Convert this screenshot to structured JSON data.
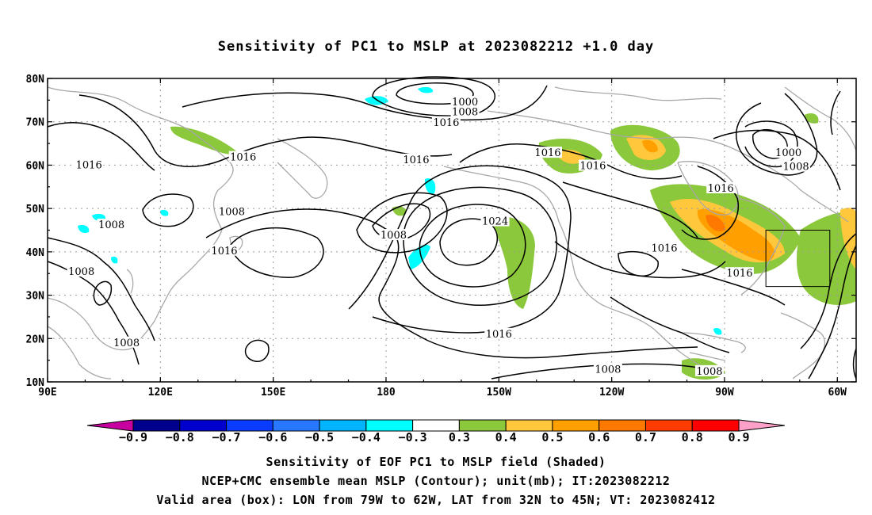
{
  "title": "Sensitivity of PC1 to MSLP at 2023082212 +1.0 day",
  "lat_labels": [
    "80N",
    "70N",
    "60N",
    "50N",
    "40N",
    "30N",
    "20N",
    "10N"
  ],
  "lon_labels": [
    "90E",
    "120E",
    "150E",
    "180",
    "150W",
    "120W",
    "90W",
    "60W"
  ],
  "contour_labels": [
    {
      "text": "1000",
      "lon": -159,
      "lat": 74.5
    },
    {
      "text": "1008",
      "lon": -159,
      "lat": 72.2
    },
    {
      "text": "1016",
      "lon": -164,
      "lat": 69.8
    },
    {
      "text": "1016",
      "lon": -137,
      "lat": 62.8
    },
    {
      "text": "1016",
      "lon": 101,
      "lat": 60.0
    },
    {
      "text": "1016",
      "lon": 142,
      "lat": 61.8
    },
    {
      "text": "1016",
      "lon": -172,
      "lat": 61.2
    },
    {
      "text": "1016",
      "lon": -125,
      "lat": 59.8
    },
    {
      "text": "1016",
      "lon": -91,
      "lat": 54.6
    },
    {
      "text": "1000",
      "lon": -73,
      "lat": 62.8
    },
    {
      "text": "1008",
      "lon": -71,
      "lat": 59.6
    },
    {
      "text": "1008",
      "lon": 139,
      "lat": 49.2
    },
    {
      "text": "1008",
      "lon": -178,
      "lat": 43.8
    },
    {
      "text": "1008",
      "lon": 107,
      "lat": 46.2
    },
    {
      "text": "1024",
      "lon": -151,
      "lat": 47.0
    },
    {
      "text": "1016",
      "lon": 137,
      "lat": 40.2
    },
    {
      "text": "1016",
      "lon": -106,
      "lat": 40.8
    },
    {
      "text": "1016",
      "lon": -86,
      "lat": 35.0
    },
    {
      "text": "1008",
      "lon": 99,
      "lat": 35.4
    },
    {
      "text": "1016",
      "lon": -150,
      "lat": 21.0
    },
    {
      "text": "1008",
      "lon": 111,
      "lat": 19.0
    },
    {
      "text": "1008",
      "lon": -121,
      "lat": 12.8
    },
    {
      "text": "1008",
      "lon": -94,
      "lat": 12.4
    }
  ],
  "valid_box": {
    "lon_min": -79,
    "lon_max": -62,
    "lat_min": 32,
    "lat_max": 45
  },
  "colorbar": {
    "colors": [
      "#c800a0",
      "#00008c",
      "#0000cd",
      "#0a3cff",
      "#2878ff",
      "#00b4ff",
      "#00ffff",
      "#ffffff",
      "#8cc83c",
      "#ffc83c",
      "#ffa000",
      "#ff7800",
      "#ff3c00",
      "#ff0000",
      "#ffa0c8"
    ],
    "labels": [
      "−0.9",
      "−0.8",
      "−0.7",
      "−0.6",
      "−0.5",
      "−0.4",
      "−0.3",
      "0.3",
      "0.4",
      "0.5",
      "0.6",
      "0.7",
      "0.8",
      "0.9"
    ]
  },
  "caption": {
    "line1": "Sensitivity of EOF PC1 to MSLP field (Shaded)",
    "line2": "NCEP+CMC ensemble mean MSLP (Contour); unit(mb); IT:2023082212",
    "line3": "Valid area (box): LON from 79W to 62W, LAT from 32N to 45N; VT: 2023082412"
  }
}
